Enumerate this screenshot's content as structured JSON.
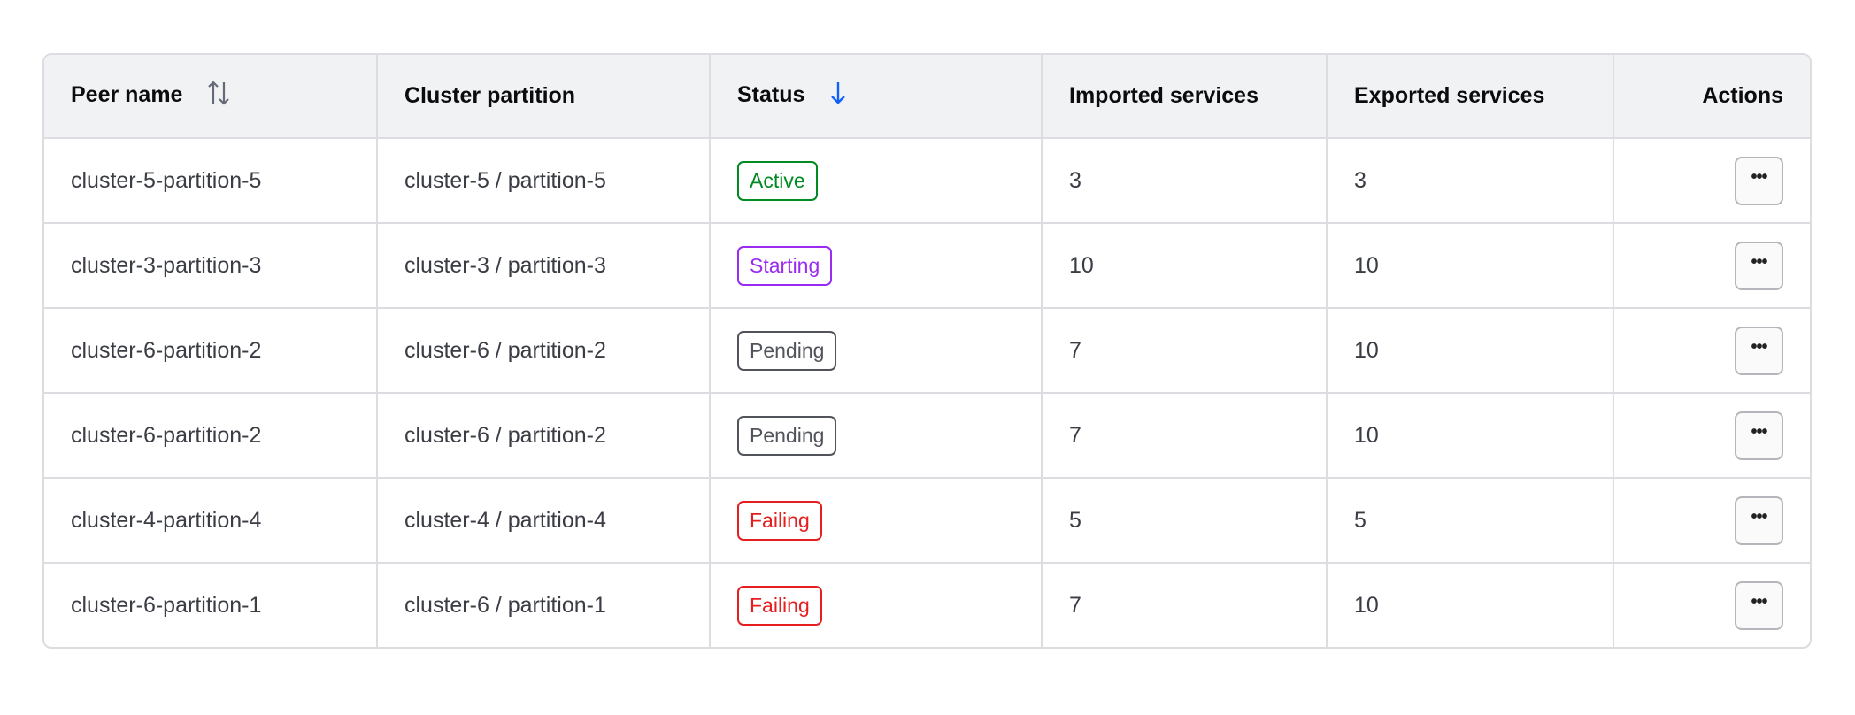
{
  "columns": [
    {
      "label": "Peer name",
      "sort": "sortable-icon"
    },
    {
      "label": "Cluster partition"
    },
    {
      "label": "Status",
      "sort": "arrow-down-icon"
    },
    {
      "label": "Imported services"
    },
    {
      "label": "Exported services"
    },
    {
      "label": "Actions"
    }
  ],
  "colors": {
    "Active": "#008a22",
    "Starting": "#9a2bf0",
    "Pending": "#52545c",
    "Failing": "#e51f1f",
    "sort_active": "#1060ff"
  },
  "rows": [
    {
      "peer": "cluster-5-partition-5",
      "partition": "cluster-5 / partition-5",
      "status": "Active",
      "imported": "3",
      "exported": "3"
    },
    {
      "peer": "cluster-3-partition-3",
      "partition": "cluster-3 / partition-3",
      "status": "Starting",
      "imported": "10",
      "exported": "10"
    },
    {
      "peer": "cluster-6-partition-2",
      "partition": "cluster-6 / partition-2",
      "status": "Pending",
      "imported": "7",
      "exported": "10"
    },
    {
      "peer": "cluster-6-partition-2",
      "partition": "cluster-6 / partition-2",
      "status": "Pending",
      "imported": "7",
      "exported": "10"
    },
    {
      "peer": "cluster-4-partition-4",
      "partition": "cluster-4 / partition-4",
      "status": "Failing",
      "imported": "5",
      "exported": "5"
    },
    {
      "peer": "cluster-6-partition-1",
      "partition": "cluster-6 / partition-1",
      "status": "Failing",
      "imported": "7",
      "exported": "10"
    }
  ],
  "actions_label": "•••"
}
